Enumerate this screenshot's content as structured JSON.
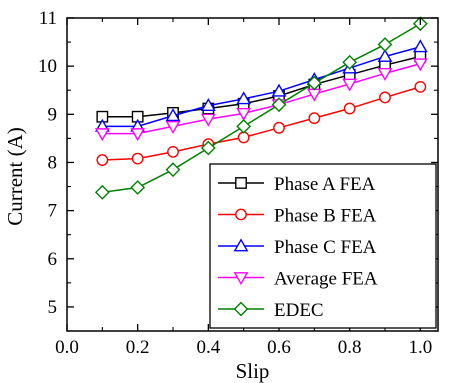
{
  "chart_data": {
    "type": "line",
    "title": "",
    "xlabel": "Slip",
    "ylabel": "Current (A)",
    "xlim": [
      0.0,
      1.05
    ],
    "ylim": [
      4.5,
      11.0
    ],
    "xticks": [
      "0.0",
      "0.2",
      "0.4",
      "0.6",
      "0.8",
      "1.0"
    ],
    "yticks": [
      "5",
      "6",
      "7",
      "8",
      "9",
      "10",
      "11"
    ],
    "grid": false,
    "legend_position": "bottom-right",
    "x": [
      0.1,
      0.2,
      0.3,
      0.4,
      0.5,
      0.6,
      0.7,
      0.8,
      0.9,
      1.0
    ],
    "series": [
      {
        "name": "Phase A FEA",
        "color": "#000000",
        "marker": "square",
        "values": [
          8.95,
          8.95,
          9.03,
          9.12,
          9.22,
          9.38,
          9.62,
          9.82,
          10.02,
          10.2
        ]
      },
      {
        "name": "Phase B FEA",
        "color": "#ff0000",
        "marker": "circle",
        "values": [
          8.05,
          8.08,
          8.22,
          8.38,
          8.52,
          8.72,
          8.92,
          9.12,
          9.35,
          9.57
        ]
      },
      {
        "name": "Phase C FEA",
        "color": "#0000ff",
        "marker": "triangle-up",
        "values": [
          8.75,
          8.75,
          8.97,
          9.18,
          9.32,
          9.48,
          9.72,
          9.96,
          10.2,
          10.4
        ]
      },
      {
        "name": "Average FEA",
        "color": "#ff00ff",
        "marker": "triangle-down",
        "values": [
          8.6,
          8.6,
          8.75,
          8.9,
          9.02,
          9.2,
          9.42,
          9.63,
          9.85,
          10.05
        ]
      },
      {
        "name": "EDEC",
        "color": "#008000",
        "marker": "diamond",
        "values": [
          7.38,
          7.48,
          7.85,
          8.3,
          8.75,
          9.2,
          9.65,
          10.08,
          10.45,
          10.88
        ]
      }
    ]
  }
}
